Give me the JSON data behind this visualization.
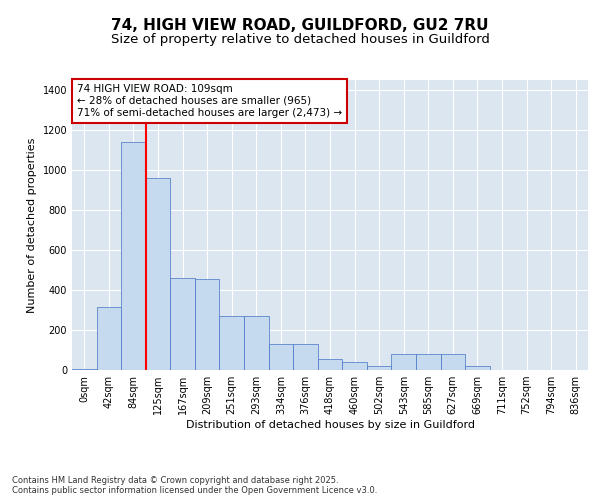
{
  "title_line1": "74, HIGH VIEW ROAD, GUILDFORD, GU2 7RU",
  "title_line2": "Size of property relative to detached houses in Guildford",
  "xlabel": "Distribution of detached houses by size in Guildford",
  "ylabel": "Number of detached properties",
  "bar_labels": [
    "0sqm",
    "42sqm",
    "84sqm",
    "125sqm",
    "167sqm",
    "209sqm",
    "251sqm",
    "293sqm",
    "334sqm",
    "376sqm",
    "418sqm",
    "460sqm",
    "502sqm",
    "543sqm",
    "585sqm",
    "627sqm",
    "669sqm",
    "711sqm",
    "752sqm",
    "794sqm",
    "836sqm"
  ],
  "bar_values": [
    5,
    315,
    1140,
    960,
    460,
    455,
    270,
    270,
    130,
    130,
    55,
    40,
    20,
    80,
    80,
    80,
    20,
    0,
    0,
    0,
    0
  ],
  "bar_color": "#c5d9ef",
  "bar_edge_color": "#4472c4",
  "background_color": "#dce6f1",
  "grid_color": "#ffffff",
  "vline_color": "#ff0000",
  "vline_x_index": 2,
  "annotation_text": "74 HIGH VIEW ROAD: 109sqm\n← 28% of detached houses are smaller (965)\n71% of semi-detached houses are larger (2,473) →",
  "annotation_box_edgecolor": "#cc0000",
  "ylim": [
    0,
    1450
  ],
  "yticks": [
    0,
    200,
    400,
    600,
    800,
    1000,
    1200,
    1400
  ],
  "footer": "Contains HM Land Registry data © Crown copyright and database right 2025.\nContains public sector information licensed under the Open Government Licence v3.0.",
  "title_fontsize": 11,
  "subtitle_fontsize": 9.5,
  "label_fontsize": 8,
  "tick_fontsize": 7,
  "annotation_fontsize": 7.5,
  "ylabel_fontsize": 8
}
